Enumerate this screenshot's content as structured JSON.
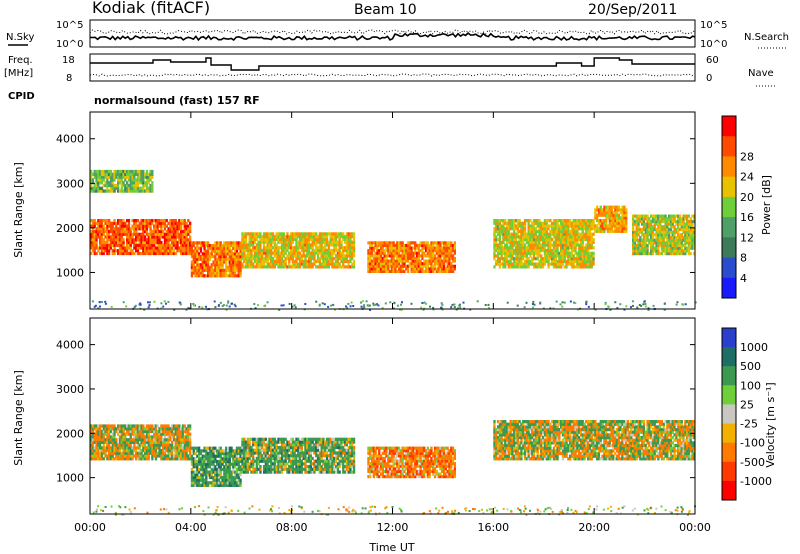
{
  "header": {
    "station": "Kodiak (fitACF)",
    "beam": "Beam 10",
    "date": "20/Sep/2011"
  },
  "top_panels": {
    "nsky_label": "N.Sky",
    "nsearch_label": "N.Search",
    "noise_ticks": [
      "10^5",
      "10^0"
    ],
    "freq_label": "Freq.",
    "freq_unit": "[MHz]",
    "freq_ticks": [
      "18",
      "8"
    ],
    "nave_label": "Nave",
    "nave_ticks": [
      "60",
      "0"
    ],
    "cpid_label": "CPID",
    "cpid_text": "normalsound (fast) 157 RF"
  },
  "colors": {
    "power": [
      "#1a1aff",
      "#2a4dcc",
      "#3d7a5a",
      "#4fa066",
      "#6fcf3a",
      "#e8c200",
      "#ff8a00",
      "#ff4a00",
      "#ff0000"
    ],
    "velocity": [
      "#2a3fcc",
      "#1f6e66",
      "#3c9a50",
      "#6fcf3a",
      "#c8c8c0",
      "#f2b000",
      "#ff7a00",
      "#ff3a00",
      "#ff0000"
    ]
  },
  "chart_data": [
    {
      "type": "heatmap",
      "title": "Power",
      "xlabel": "",
      "ylabel": "Slant Range [km]",
      "x_range_hours": [
        0,
        24
      ],
      "xticks": [
        "00:00",
        "04:00",
        "08:00",
        "12:00",
        "16:00",
        "20:00",
        "00:00"
      ],
      "ylim": [
        180,
        4600
      ],
      "yticks": [
        "1000",
        "2000",
        "3000",
        "4000"
      ],
      "colorbar": {
        "label": "Power [dB]",
        "range": [
          0,
          32
        ],
        "ticks": [
          "4",
          "8",
          "12",
          "16",
          "20",
          "24",
          "28"
        ]
      },
      "bands": [
        {
          "t0": 0.0,
          "t1": 4.0,
          "r0": 1400,
          "r1": 2200,
          "value": 26
        },
        {
          "t0": 0.0,
          "t1": 2.5,
          "r0": 2800,
          "r1": 3300,
          "value": 15
        },
        {
          "t0": 4.0,
          "t1": 6.0,
          "r0": 900,
          "r1": 1700,
          "value": 24
        },
        {
          "t0": 6.0,
          "t1": 10.5,
          "r0": 1100,
          "r1": 1900,
          "value": 20
        },
        {
          "t0": 11.0,
          "t1": 14.5,
          "r0": 1000,
          "r1": 1700,
          "value": 24
        },
        {
          "t0": 16.0,
          "t1": 20.0,
          "r0": 1100,
          "r1": 2200,
          "value": 19
        },
        {
          "t0": 20.0,
          "t1": 21.3,
          "r0": 1900,
          "r1": 2500,
          "value": 22
        },
        {
          "t0": 21.5,
          "t1": 24.0,
          "r0": 1400,
          "r1": 2300,
          "value": 18
        }
      ]
    },
    {
      "type": "heatmap",
      "title": "Velocity",
      "xlabel": "Time UT",
      "ylabel": "Slant Range [km]",
      "x_range_hours": [
        0,
        24
      ],
      "xticks": [
        "00:00",
        "04:00",
        "08:00",
        "12:00",
        "16:00",
        "20:00",
        "00:00"
      ],
      "ylim": [
        180,
        4600
      ],
      "yticks": [
        "1000",
        "2000",
        "3000",
        "4000"
      ],
      "colorbar": {
        "label": "Velocity [m s⁻¹]",
        "ticks": [
          "1000",
          "500",
          "100",
          "25",
          "-25",
          "-100",
          "-500",
          "-1000"
        ]
      },
      "bands": [
        {
          "t0": 0.0,
          "t1": 4.0,
          "r0": 1400,
          "r1": 2200,
          "value": 0
        },
        {
          "t0": 4.0,
          "t1": 6.0,
          "r0": 800,
          "r1": 1700,
          "value": 300
        },
        {
          "t0": 6.0,
          "t1": 10.5,
          "r0": 1100,
          "r1": 1900,
          "value": 200
        },
        {
          "t0": 11.0,
          "t1": 14.5,
          "r0": 1000,
          "r1": 1700,
          "value": -300
        },
        {
          "t0": 16.0,
          "t1": 24.0,
          "r0": 1400,
          "r1": 2300,
          "value": 0
        }
      ]
    }
  ]
}
